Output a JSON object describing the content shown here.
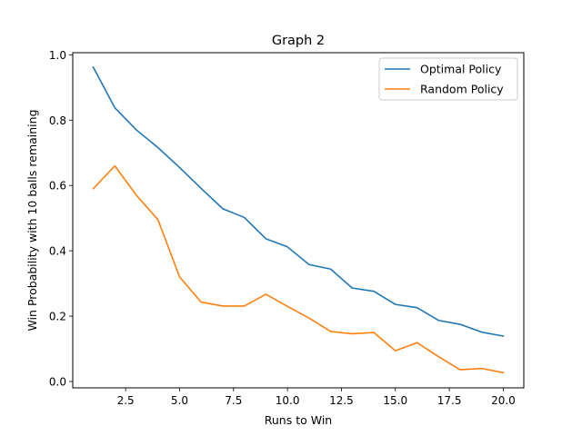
{
  "chart_data": {
    "type": "line",
    "title": "Graph 2",
    "xlabel": "Runs to Win",
    "ylabel": "Win Probability with 10 balls remaining",
    "x": [
      1,
      2,
      3,
      4,
      5,
      6,
      7,
      8,
      9,
      10,
      11,
      12,
      13,
      14,
      15,
      16,
      17,
      18,
      19,
      20
    ],
    "series": [
      {
        "name": "Optimal Policy",
        "color": "#1f77b4",
        "values": [
          0.962,
          0.838,
          0.77,
          0.716,
          0.655,
          0.591,
          0.529,
          0.502,
          0.437,
          0.412,
          0.358,
          0.344,
          0.286,
          0.276,
          0.236,
          0.226,
          0.187,
          0.175,
          0.151,
          0.139
        ]
      },
      {
        "name": "Random Policy",
        "color": "#ff7f0e",
        "values": [
          0.59,
          0.66,
          0.57,
          0.495,
          0.32,
          0.243,
          0.231,
          0.231,
          0.267,
          0.23,
          0.194,
          0.153,
          0.146,
          0.15,
          0.094,
          0.119,
          0.076,
          0.036,
          0.04,
          0.027
        ]
      }
    ],
    "xlim": [
      0.05,
      20.95
    ],
    "ylim": [
      -0.0195,
      1.0065
    ],
    "xticks": [
      2.5,
      5.0,
      7.5,
      10.0,
      12.5,
      15.0,
      17.5,
      20.0
    ],
    "xtick_labels": [
      "2.5",
      "5.0",
      "7.5",
      "10.0",
      "12.5",
      "15.0",
      "17.5",
      "20.0"
    ],
    "yticks": [
      0.0,
      0.2,
      0.4,
      0.6,
      0.8,
      1.0
    ],
    "ytick_labels": [
      "0.0",
      "0.2",
      "0.4",
      "0.6",
      "0.8",
      "1.0"
    ],
    "grid": false,
    "legend": "top-right"
  }
}
